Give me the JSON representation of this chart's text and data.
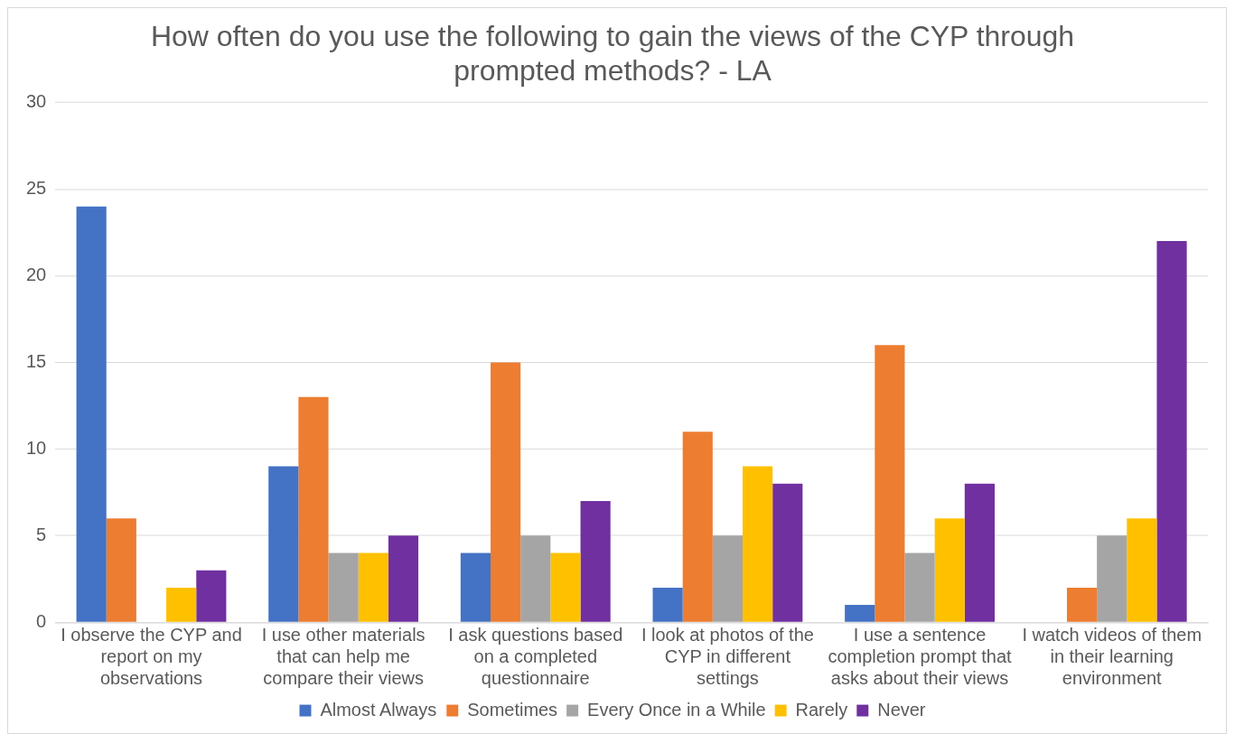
{
  "chart_data": {
    "type": "bar",
    "title": "How often do you use the following to gain the views of the CYP through prompted methods? - LA",
    "categories": [
      "I observe the CYP and report on my observations",
      "I use other materials that can help me compare their views",
      "I ask questions based on a completed questionnaire",
      "I look at photos of the CYP in different settings",
      "I use a sentence completion prompt that asks about their views",
      "I watch videos of them in their learning environment"
    ],
    "series": [
      {
        "name": "Almost Always",
        "color": "#4472c4",
        "values": [
          24,
          9,
          4,
          2,
          1,
          0
        ]
      },
      {
        "name": "Sometimes",
        "color": "#ed7d31",
        "values": [
          6,
          13,
          15,
          11,
          16,
          2
        ]
      },
      {
        "name": "Every Once in a While",
        "color": "#a5a5a5",
        "values": [
          0,
          4,
          5,
          5,
          4,
          5
        ]
      },
      {
        "name": "Rarely",
        "color": "#ffc000",
        "values": [
          2,
          4,
          4,
          9,
          6,
          6
        ]
      },
      {
        "name": "Never",
        "color": "#7030a0",
        "values": [
          3,
          5,
          7,
          8,
          8,
          22
        ]
      }
    ],
    "ylim": [
      0,
      30
    ],
    "yticks": [
      0,
      5,
      10,
      15,
      20,
      25,
      30
    ],
    "grid": "y",
    "legend": "bottom"
  }
}
